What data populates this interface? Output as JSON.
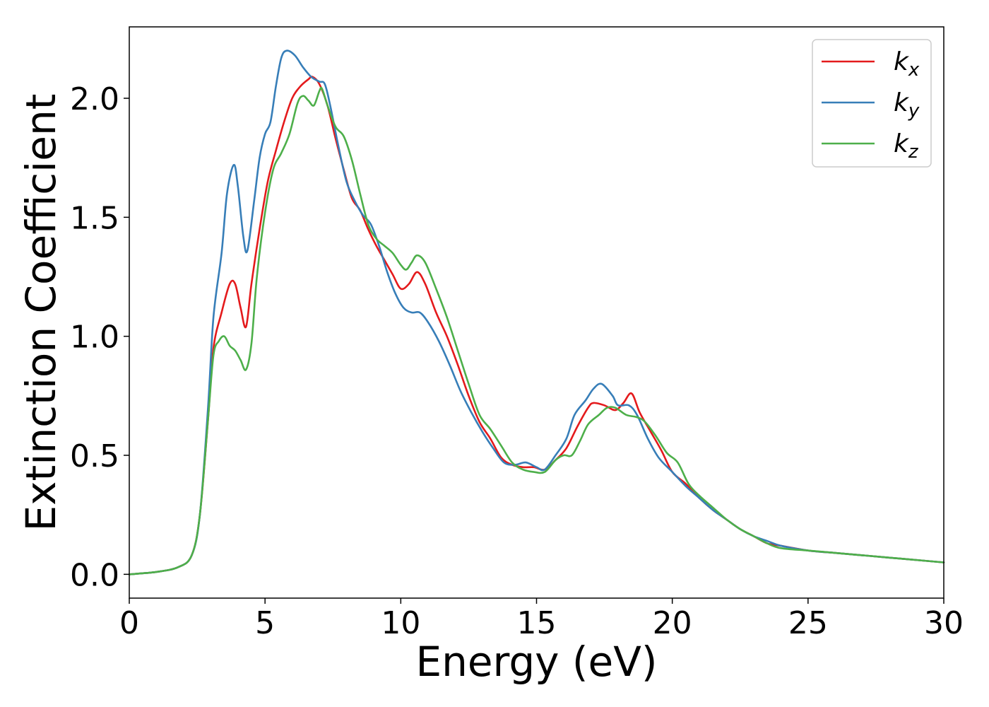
{
  "chart_data": {
    "type": "line",
    "title": "",
    "xlabel": "Energy (eV)",
    "ylabel": "Extinction Coefficient",
    "xlim": [
      0,
      30
    ],
    "ylim": [
      -0.1,
      2.3
    ],
    "xticks": [
      0,
      5,
      10,
      15,
      20,
      25,
      30
    ],
    "xtick_labels": [
      "0",
      "5",
      "10",
      "15",
      "20",
      "25",
      "30"
    ],
    "yticks": [
      0.0,
      0.5,
      1.0,
      1.5,
      2.0
    ],
    "ytick_labels": [
      "0.0",
      "0.5",
      "1.0",
      "1.5",
      "2.0"
    ],
    "grid": false,
    "legend_position": "top-right",
    "series": [
      {
        "name": "k",
        "subscript": "x",
        "color": "#e41a1c",
        "points": [
          [
            0,
            0
          ],
          [
            1,
            0.01
          ],
          [
            1.8,
            0.03
          ],
          [
            2.3,
            0.08
          ],
          [
            2.6,
            0.25
          ],
          [
            2.9,
            0.65
          ],
          [
            3.1,
            0.95
          ],
          [
            3.4,
            1.1
          ],
          [
            3.7,
            1.22
          ],
          [
            3.9,
            1.22
          ],
          [
            4.1,
            1.12
          ],
          [
            4.3,
            1.04
          ],
          [
            4.5,
            1.22
          ],
          [
            4.8,
            1.45
          ],
          [
            5.1,
            1.65
          ],
          [
            5.4,
            1.78
          ],
          [
            5.7,
            1.9
          ],
          [
            6.0,
            2.0
          ],
          [
            6.3,
            2.05
          ],
          [
            6.6,
            2.08
          ],
          [
            6.75,
            2.09
          ],
          [
            7.0,
            2.06
          ],
          [
            7.3,
            1.97
          ],
          [
            7.6,
            1.83
          ],
          [
            7.9,
            1.7
          ],
          [
            8.2,
            1.58
          ],
          [
            8.5,
            1.53
          ],
          [
            8.8,
            1.45
          ],
          [
            9.1,
            1.38
          ],
          [
            9.4,
            1.32
          ],
          [
            9.7,
            1.26
          ],
          [
            10.0,
            1.2
          ],
          [
            10.3,
            1.22
          ],
          [
            10.6,
            1.27
          ],
          [
            10.9,
            1.22
          ],
          [
            11.3,
            1.1
          ],
          [
            11.7,
            1.0
          ],
          [
            12.1,
            0.88
          ],
          [
            12.5,
            0.75
          ],
          [
            12.9,
            0.64
          ],
          [
            13.3,
            0.57
          ],
          [
            13.7,
            0.49
          ],
          [
            14.1,
            0.46
          ],
          [
            14.5,
            0.45
          ],
          [
            14.9,
            0.45
          ],
          [
            15.3,
            0.44
          ],
          [
            15.7,
            0.48
          ],
          [
            16.1,
            0.53
          ],
          [
            16.5,
            0.62
          ],
          [
            16.9,
            0.7
          ],
          [
            17.1,
            0.72
          ],
          [
            17.5,
            0.71
          ],
          [
            17.9,
            0.69
          ],
          [
            18.2,
            0.72
          ],
          [
            18.5,
            0.76
          ],
          [
            18.8,
            0.68
          ],
          [
            19.2,
            0.6
          ],
          [
            19.6,
            0.52
          ],
          [
            20.0,
            0.43
          ],
          [
            20.5,
            0.38
          ],
          [
            21.0,
            0.32
          ],
          [
            21.5,
            0.27
          ],
          [
            22.0,
            0.23
          ],
          [
            22.5,
            0.19
          ],
          [
            23.0,
            0.16
          ],
          [
            23.5,
            0.13
          ],
          [
            24.0,
            0.12
          ],
          [
            25.0,
            0.1
          ],
          [
            26.0,
            0.09
          ],
          [
            27.0,
            0.08
          ],
          [
            28.0,
            0.07
          ],
          [
            29.0,
            0.06
          ],
          [
            30.0,
            0.05
          ]
        ]
      },
      {
        "name": "k",
        "subscript": "y",
        "color": "#377eb8",
        "points": [
          [
            0,
            0
          ],
          [
            1,
            0.01
          ],
          [
            1.8,
            0.03
          ],
          [
            2.3,
            0.08
          ],
          [
            2.6,
            0.25
          ],
          [
            2.9,
            0.7
          ],
          [
            3.1,
            1.08
          ],
          [
            3.4,
            1.35
          ],
          [
            3.6,
            1.6
          ],
          [
            3.85,
            1.72
          ],
          [
            4.0,
            1.63
          ],
          [
            4.2,
            1.42
          ],
          [
            4.35,
            1.36
          ],
          [
            4.6,
            1.57
          ],
          [
            4.8,
            1.75
          ],
          [
            5.0,
            1.85
          ],
          [
            5.2,
            1.9
          ],
          [
            5.4,
            2.05
          ],
          [
            5.6,
            2.17
          ],
          [
            5.8,
            2.2
          ],
          [
            6.1,
            2.18
          ],
          [
            6.4,
            2.13
          ],
          [
            6.7,
            2.09
          ],
          [
            7.0,
            2.07
          ],
          [
            7.2,
            2.06
          ],
          [
            7.4,
            1.97
          ],
          [
            7.7,
            1.8
          ],
          [
            8.0,
            1.65
          ],
          [
            8.3,
            1.57
          ],
          [
            8.6,
            1.51
          ],
          [
            8.9,
            1.47
          ],
          [
            9.2,
            1.38
          ],
          [
            9.5,
            1.27
          ],
          [
            9.8,
            1.18
          ],
          [
            10.1,
            1.12
          ],
          [
            10.4,
            1.1
          ],
          [
            10.7,
            1.1
          ],
          [
            11.0,
            1.06
          ],
          [
            11.4,
            0.98
          ],
          [
            11.8,
            0.88
          ],
          [
            12.2,
            0.77
          ],
          [
            12.6,
            0.68
          ],
          [
            13.0,
            0.6
          ],
          [
            13.4,
            0.53
          ],
          [
            13.8,
            0.47
          ],
          [
            14.2,
            0.46
          ],
          [
            14.6,
            0.47
          ],
          [
            15.0,
            0.45
          ],
          [
            15.3,
            0.44
          ],
          [
            15.7,
            0.5
          ],
          [
            16.1,
            0.57
          ],
          [
            16.4,
            0.67
          ],
          [
            16.8,
            0.73
          ],
          [
            17.1,
            0.78
          ],
          [
            17.4,
            0.8
          ],
          [
            17.8,
            0.75
          ],
          [
            18.0,
            0.71
          ],
          [
            18.4,
            0.71
          ],
          [
            18.7,
            0.67
          ],
          [
            19.1,
            0.57
          ],
          [
            19.5,
            0.49
          ],
          [
            20.0,
            0.43
          ],
          [
            20.5,
            0.37
          ],
          [
            21.0,
            0.32
          ],
          [
            21.5,
            0.27
          ],
          [
            22.0,
            0.23
          ],
          [
            22.5,
            0.19
          ],
          [
            23.0,
            0.16
          ],
          [
            23.5,
            0.14
          ],
          [
            24.0,
            0.12
          ],
          [
            25.0,
            0.1
          ],
          [
            26.0,
            0.09
          ],
          [
            27.0,
            0.08
          ],
          [
            28.0,
            0.07
          ],
          [
            29.0,
            0.06
          ],
          [
            30.0,
            0.05
          ]
        ]
      },
      {
        "name": "k",
        "subscript": "z",
        "color": "#4daf4a",
        "points": [
          [
            0,
            0
          ],
          [
            1,
            0.01
          ],
          [
            1.8,
            0.03
          ],
          [
            2.3,
            0.08
          ],
          [
            2.6,
            0.25
          ],
          [
            2.9,
            0.65
          ],
          [
            3.1,
            0.92
          ],
          [
            3.3,
            0.98
          ],
          [
            3.5,
            1.0
          ],
          [
            3.7,
            0.96
          ],
          [
            3.9,
            0.94
          ],
          [
            4.1,
            0.9
          ],
          [
            4.3,
            0.86
          ],
          [
            4.5,
            0.97
          ],
          [
            4.7,
            1.25
          ],
          [
            5.0,
            1.52
          ],
          [
            5.3,
            1.7
          ],
          [
            5.6,
            1.77
          ],
          [
            5.9,
            1.85
          ],
          [
            6.2,
            1.98
          ],
          [
            6.4,
            2.01
          ],
          [
            6.6,
            1.99
          ],
          [
            6.8,
            1.97
          ],
          [
            7.0,
            2.03
          ],
          [
            7.1,
            2.04
          ],
          [
            7.3,
            1.97
          ],
          [
            7.6,
            1.88
          ],
          [
            7.9,
            1.84
          ],
          [
            8.2,
            1.74
          ],
          [
            8.5,
            1.6
          ],
          [
            8.8,
            1.47
          ],
          [
            9.1,
            1.41
          ],
          [
            9.4,
            1.38
          ],
          [
            9.7,
            1.35
          ],
          [
            10.0,
            1.3
          ],
          [
            10.2,
            1.28
          ],
          [
            10.4,
            1.31
          ],
          [
            10.6,
            1.34
          ],
          [
            10.9,
            1.31
          ],
          [
            11.3,
            1.2
          ],
          [
            11.7,
            1.08
          ],
          [
            12.1,
            0.94
          ],
          [
            12.5,
            0.8
          ],
          [
            12.9,
            0.67
          ],
          [
            13.3,
            0.61
          ],
          [
            13.7,
            0.54
          ],
          [
            14.1,
            0.47
          ],
          [
            14.5,
            0.44
          ],
          [
            14.9,
            0.43
          ],
          [
            15.3,
            0.43
          ],
          [
            15.7,
            0.48
          ],
          [
            16.0,
            0.5
          ],
          [
            16.3,
            0.5
          ],
          [
            16.6,
            0.56
          ],
          [
            16.9,
            0.63
          ],
          [
            17.3,
            0.67
          ],
          [
            17.6,
            0.7
          ],
          [
            17.9,
            0.7
          ],
          [
            18.3,
            0.67
          ],
          [
            18.7,
            0.66
          ],
          [
            19.0,
            0.64
          ],
          [
            19.4,
            0.58
          ],
          [
            19.8,
            0.51
          ],
          [
            20.2,
            0.47
          ],
          [
            20.6,
            0.38
          ],
          [
            21.0,
            0.33
          ],
          [
            21.5,
            0.28
          ],
          [
            22.0,
            0.23
          ],
          [
            22.5,
            0.19
          ],
          [
            23.0,
            0.16
          ],
          [
            23.5,
            0.13
          ],
          [
            24.0,
            0.11
          ],
          [
            25.0,
            0.1
          ],
          [
            26.0,
            0.09
          ],
          [
            27.0,
            0.08
          ],
          [
            28.0,
            0.07
          ],
          [
            29.0,
            0.06
          ],
          [
            30.0,
            0.05
          ]
        ]
      }
    ]
  }
}
